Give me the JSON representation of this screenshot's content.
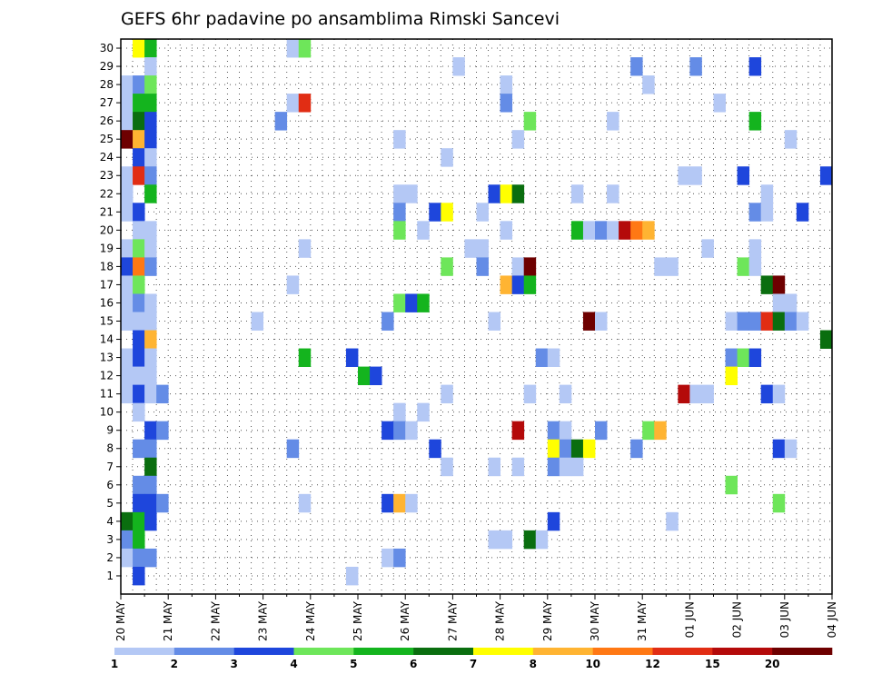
{
  "chart_data": {
    "type": "heatmap",
    "title": "GEFS 6hr padavine po ansamblima Rimski Sancevi",
    "xlabel": "",
    "ylabel": "",
    "x_tick_labels": [
      "20 MAY",
      "21 MAY",
      "22 MAY",
      "23 MAY",
      "24 MAY",
      "25 MAY",
      "26 MAY",
      "27 MAY",
      "28 MAY",
      "29 MAY",
      "30 MAY",
      "31 MAY",
      "01 JUN",
      "02 JUN",
      "03 JUN",
      "04 JUN"
    ],
    "y_tick_labels": [
      "1",
      "2",
      "3",
      "4",
      "5",
      "6",
      "7",
      "8",
      "9",
      "10",
      "11",
      "12",
      "13",
      "14",
      "15",
      "16",
      "17",
      "18",
      "19",
      "20",
      "21",
      "22",
      "23",
      "24",
      "25",
      "26",
      "27",
      "28",
      "29",
      "30"
    ],
    "x_range_steps": [
      0,
      60
    ],
    "y_range": [
      0,
      30
    ],
    "grid": true,
    "legend": {
      "placement": "bottom",
      "labels": [
        "1",
        "2",
        "3",
        "4",
        "5",
        "6",
        "7",
        "8",
        "10",
        "12",
        "15",
        "20"
      ],
      "colors": [
        "#b4c8f5",
        "#648ce6",
        "#1e46dc",
        "#6ee65a",
        "#14b41e",
        "#0a6e0f",
        "#ffff00",
        "#ffb432",
        "#ff7814",
        "#e12d14",
        "#b40a0a",
        "#6e0000"
      ]
    },
    "cells": [
      {
        "member": 30,
        "step": 1,
        "color": "#ffff00"
      },
      {
        "member": 30,
        "step": 2,
        "color": "#14b41e"
      },
      {
        "member": 30,
        "step": 14,
        "color": "#b4c8f5"
      },
      {
        "member": 30,
        "step": 15,
        "color": "#6ee65a"
      },
      {
        "member": 29,
        "step": 2,
        "color": "#b4c8f5"
      },
      {
        "member": 29,
        "step": 28,
        "color": "#b4c8f5"
      },
      {
        "member": 29,
        "step": 43,
        "color": "#648ce6"
      },
      {
        "member": 29,
        "step": 48,
        "color": "#648ce6"
      },
      {
        "member": 29,
        "step": 53,
        "color": "#1e46dc"
      },
      {
        "member": 28,
        "step": 0,
        "color": "#b4c8f5"
      },
      {
        "member": 28,
        "step": 1,
        "color": "#648ce6"
      },
      {
        "member": 28,
        "step": 2,
        "color": "#6ee65a"
      },
      {
        "member": 28,
        "step": 32,
        "color": "#b4c8f5"
      },
      {
        "member": 28,
        "step": 44,
        "color": "#b4c8f5"
      },
      {
        "member": 27,
        "step": 0,
        "color": "#b4c8f5"
      },
      {
        "member": 27,
        "step": 1,
        "color": "#14b41e"
      },
      {
        "member": 27,
        "step": 2,
        "color": "#14b41e"
      },
      {
        "member": 27,
        "step": 14,
        "color": "#b4c8f5"
      },
      {
        "member": 27,
        "step": 15,
        "color": "#e12d14"
      },
      {
        "member": 27,
        "step": 32,
        "color": "#648ce6"
      },
      {
        "member": 27,
        "step": 50,
        "color": "#b4c8f5"
      },
      {
        "member": 26,
        "step": 0,
        "color": "#b4c8f5"
      },
      {
        "member": 26,
        "step": 1,
        "color": "#0a6e0f"
      },
      {
        "member": 26,
        "step": 2,
        "color": "#1e46dc"
      },
      {
        "member": 26,
        "step": 13,
        "color": "#648ce6"
      },
      {
        "member": 26,
        "step": 34,
        "color": "#6ee65a"
      },
      {
        "member": 26,
        "step": 41,
        "color": "#b4c8f5"
      },
      {
        "member": 26,
        "step": 53,
        "color": "#14b41e"
      },
      {
        "member": 25,
        "step": 0,
        "color": "#6e0000"
      },
      {
        "member": 25,
        "step": 1,
        "color": "#ffb432"
      },
      {
        "member": 25,
        "step": 2,
        "color": "#1e46dc"
      },
      {
        "member": 25,
        "step": 23,
        "color": "#b4c8f5"
      },
      {
        "member": 25,
        "step": 33,
        "color": "#b4c8f5"
      },
      {
        "member": 25,
        "step": 56,
        "color": "#b4c8f5"
      },
      {
        "member": 24,
        "step": 1,
        "color": "#1e46dc"
      },
      {
        "member": 24,
        "step": 2,
        "color": "#b4c8f5"
      },
      {
        "member": 24,
        "step": 27,
        "color": "#b4c8f5"
      },
      {
        "member": 23,
        "step": 0,
        "color": "#b4c8f5"
      },
      {
        "member": 23,
        "step": 1,
        "color": "#e12d14"
      },
      {
        "member": 23,
        "step": 2,
        "color": "#648ce6"
      },
      {
        "member": 23,
        "step": 47,
        "color": "#b4c8f5"
      },
      {
        "member": 23,
        "step": 48,
        "color": "#b4c8f5"
      },
      {
        "member": 23,
        "step": 52,
        "color": "#1e46dc"
      },
      {
        "member": 23,
        "step": 59,
        "color": "#1e46dc"
      },
      {
        "member": 22,
        "step": 0,
        "color": "#b4c8f5"
      },
      {
        "member": 22,
        "step": 2,
        "color": "#14b41e"
      },
      {
        "member": 22,
        "step": 23,
        "color": "#b4c8f5"
      },
      {
        "member": 22,
        "step": 24,
        "color": "#b4c8f5"
      },
      {
        "member": 22,
        "step": 31,
        "color": "#1e46dc"
      },
      {
        "member": 22,
        "step": 32,
        "color": "#ffff00"
      },
      {
        "member": 22,
        "step": 33,
        "color": "#0a6e0f"
      },
      {
        "member": 22,
        "step": 38,
        "color": "#b4c8f5"
      },
      {
        "member": 22,
        "step": 41,
        "color": "#b4c8f5"
      },
      {
        "member": 22,
        "step": 54,
        "color": "#b4c8f5"
      },
      {
        "member": 21,
        "step": 0,
        "color": "#b4c8f5"
      },
      {
        "member": 21,
        "step": 1,
        "color": "#1e46dc"
      },
      {
        "member": 21,
        "step": 23,
        "color": "#648ce6"
      },
      {
        "member": 21,
        "step": 26,
        "color": "#1e46dc"
      },
      {
        "member": 21,
        "step": 27,
        "color": "#ffff00"
      },
      {
        "member": 21,
        "step": 30,
        "color": "#b4c8f5"
      },
      {
        "member": 21,
        "step": 53,
        "color": "#648ce6"
      },
      {
        "member": 21,
        "step": 54,
        "color": "#b4c8f5"
      },
      {
        "member": 21,
        "step": 57,
        "color": "#1e46dc"
      },
      {
        "member": 20,
        "step": 1,
        "color": "#b4c8f5"
      },
      {
        "member": 20,
        "step": 2,
        "color": "#b4c8f5"
      },
      {
        "member": 20,
        "step": 23,
        "color": "#6ee65a"
      },
      {
        "member": 20,
        "step": 25,
        "color": "#b4c8f5"
      },
      {
        "member": 20,
        "step": 32,
        "color": "#b4c8f5"
      },
      {
        "member": 20,
        "step": 38,
        "color": "#14b41e"
      },
      {
        "member": 20,
        "step": 39,
        "color": "#b4c8f5"
      },
      {
        "member": 20,
        "step": 40,
        "color": "#648ce6"
      },
      {
        "member": 20,
        "step": 41,
        "color": "#b4c8f5"
      },
      {
        "member": 20,
        "step": 42,
        "color": "#b40a0a"
      },
      {
        "member": 20,
        "step": 43,
        "color": "#ff7814"
      },
      {
        "member": 20,
        "step": 44,
        "color": "#ffb432"
      },
      {
        "member": 19,
        "step": 0,
        "color": "#b4c8f5"
      },
      {
        "member": 19,
        "step": 1,
        "color": "#6ee65a"
      },
      {
        "member": 19,
        "step": 2,
        "color": "#b4c8f5"
      },
      {
        "member": 19,
        "step": 15,
        "color": "#b4c8f5"
      },
      {
        "member": 19,
        "step": 29,
        "color": "#b4c8f5"
      },
      {
        "member": 19,
        "step": 30,
        "color": "#b4c8f5"
      },
      {
        "member": 19,
        "step": 49,
        "color": "#b4c8f5"
      },
      {
        "member": 19,
        "step": 53,
        "color": "#b4c8f5"
      },
      {
        "member": 18,
        "step": 0,
        "color": "#1e46dc"
      },
      {
        "member": 18,
        "step": 1,
        "color": "#ff7814"
      },
      {
        "member": 18,
        "step": 2,
        "color": "#648ce6"
      },
      {
        "member": 18,
        "step": 27,
        "color": "#6ee65a"
      },
      {
        "member": 18,
        "step": 30,
        "color": "#648ce6"
      },
      {
        "member": 18,
        "step": 33,
        "color": "#b4c8f5"
      },
      {
        "member": 18,
        "step": 34,
        "color": "#6e0000"
      },
      {
        "member": 18,
        "step": 45,
        "color": "#b4c8f5"
      },
      {
        "member": 18,
        "step": 46,
        "color": "#b4c8f5"
      },
      {
        "member": 18,
        "step": 52,
        "color": "#6ee65a"
      },
      {
        "member": 18,
        "step": 53,
        "color": "#b4c8f5"
      },
      {
        "member": 17,
        "step": 0,
        "color": "#b4c8f5"
      },
      {
        "member": 17,
        "step": 1,
        "color": "#6ee65a"
      },
      {
        "member": 17,
        "step": 14,
        "color": "#b4c8f5"
      },
      {
        "member": 17,
        "step": 32,
        "color": "#ffb432"
      },
      {
        "member": 17,
        "step": 33,
        "color": "#1e46dc"
      },
      {
        "member": 17,
        "step": 34,
        "color": "#14b41e"
      },
      {
        "member": 17,
        "step": 54,
        "color": "#0a6e0f"
      },
      {
        "member": 17,
        "step": 55,
        "color": "#6e0000"
      },
      {
        "member": 16,
        "step": 0,
        "color": "#b4c8f5"
      },
      {
        "member": 16,
        "step": 1,
        "color": "#648ce6"
      },
      {
        "member": 16,
        "step": 2,
        "color": "#b4c8f5"
      },
      {
        "member": 16,
        "step": 23,
        "color": "#6ee65a"
      },
      {
        "member": 16,
        "step": 24,
        "color": "#1e46dc"
      },
      {
        "member": 16,
        "step": 25,
        "color": "#14b41e"
      },
      {
        "member": 16,
        "step": 55,
        "color": "#b4c8f5"
      },
      {
        "member": 16,
        "step": 56,
        "color": "#b4c8f5"
      },
      {
        "member": 15,
        "step": 0,
        "color": "#b4c8f5"
      },
      {
        "member": 15,
        "step": 1,
        "color": "#b4c8f5"
      },
      {
        "member": 15,
        "step": 2,
        "color": "#b4c8f5"
      },
      {
        "member": 15,
        "step": 11,
        "color": "#b4c8f5"
      },
      {
        "member": 15,
        "step": 22,
        "color": "#648ce6"
      },
      {
        "member": 15,
        "step": 31,
        "color": "#b4c8f5"
      },
      {
        "member": 15,
        "step": 39,
        "color": "#6e0000"
      },
      {
        "member": 15,
        "step": 40,
        "color": "#b4c8f5"
      },
      {
        "member": 15,
        "step": 51,
        "color": "#b4c8f5"
      },
      {
        "member": 15,
        "step": 52,
        "color": "#648ce6"
      },
      {
        "member": 15,
        "step": 53,
        "color": "#648ce6"
      },
      {
        "member": 15,
        "step": 54,
        "color": "#e12d14"
      },
      {
        "member": 15,
        "step": 55,
        "color": "#0a6e0f"
      },
      {
        "member": 15,
        "step": 56,
        "color": "#648ce6"
      },
      {
        "member": 15,
        "step": 57,
        "color": "#b4c8f5"
      },
      {
        "member": 14,
        "step": 1,
        "color": "#1e46dc"
      },
      {
        "member": 14,
        "step": 2,
        "color": "#ffb432"
      },
      {
        "member": 14,
        "step": 59,
        "color": "#0a6e0f"
      },
      {
        "member": 13,
        "step": 0,
        "color": "#b4c8f5"
      },
      {
        "member": 13,
        "step": 1,
        "color": "#1e46dc"
      },
      {
        "member": 13,
        "step": 2,
        "color": "#b4c8f5"
      },
      {
        "member": 13,
        "step": 15,
        "color": "#14b41e"
      },
      {
        "member": 13,
        "step": 19,
        "color": "#1e46dc"
      },
      {
        "member": 13,
        "step": 35,
        "color": "#648ce6"
      },
      {
        "member": 13,
        "step": 36,
        "color": "#b4c8f5"
      },
      {
        "member": 13,
        "step": 51,
        "color": "#648ce6"
      },
      {
        "member": 13,
        "step": 52,
        "color": "#6ee65a"
      },
      {
        "member": 13,
        "step": 53,
        "color": "#1e46dc"
      },
      {
        "member": 12,
        "step": 0,
        "color": "#b4c8f5"
      },
      {
        "member": 12,
        "step": 1,
        "color": "#b4c8f5"
      },
      {
        "member": 12,
        "step": 2,
        "color": "#b4c8f5"
      },
      {
        "member": 12,
        "step": 20,
        "color": "#14b41e"
      },
      {
        "member": 12,
        "step": 21,
        "color": "#1e46dc"
      },
      {
        "member": 12,
        "step": 51,
        "color": "#ffff00"
      },
      {
        "member": 11,
        "step": 0,
        "color": "#b4c8f5"
      },
      {
        "member": 11,
        "step": 1,
        "color": "#1e46dc"
      },
      {
        "member": 11,
        "step": 2,
        "color": "#b4c8f5"
      },
      {
        "member": 11,
        "step": 3,
        "color": "#648ce6"
      },
      {
        "member": 11,
        "step": 27,
        "color": "#b4c8f5"
      },
      {
        "member": 11,
        "step": 34,
        "color": "#b4c8f5"
      },
      {
        "member": 11,
        "step": 37,
        "color": "#b4c8f5"
      },
      {
        "member": 11,
        "step": 47,
        "color": "#b40a0a"
      },
      {
        "member": 11,
        "step": 48,
        "color": "#b4c8f5"
      },
      {
        "member": 11,
        "step": 49,
        "color": "#b4c8f5"
      },
      {
        "member": 11,
        "step": 54,
        "color": "#1e46dc"
      },
      {
        "member": 11,
        "step": 55,
        "color": "#b4c8f5"
      },
      {
        "member": 10,
        "step": 1,
        "color": "#b4c8f5"
      },
      {
        "member": 10,
        "step": 23,
        "color": "#b4c8f5"
      },
      {
        "member": 10,
        "step": 25,
        "color": "#b4c8f5"
      },
      {
        "member": 9,
        "step": 2,
        "color": "#1e46dc"
      },
      {
        "member": 9,
        "step": 3,
        "color": "#648ce6"
      },
      {
        "member": 9,
        "step": 22,
        "color": "#1e46dc"
      },
      {
        "member": 9,
        "step": 23,
        "color": "#648ce6"
      },
      {
        "member": 9,
        "step": 24,
        "color": "#b4c8f5"
      },
      {
        "member": 9,
        "step": 33,
        "color": "#b40a0a"
      },
      {
        "member": 9,
        "step": 36,
        "color": "#648ce6"
      },
      {
        "member": 9,
        "step": 37,
        "color": "#b4c8f5"
      },
      {
        "member": 9,
        "step": 40,
        "color": "#648ce6"
      },
      {
        "member": 9,
        "step": 44,
        "color": "#6ee65a"
      },
      {
        "member": 9,
        "step": 45,
        "color": "#ffb432"
      },
      {
        "member": 8,
        "step": 1,
        "color": "#648ce6"
      },
      {
        "member": 8,
        "step": 2,
        "color": "#648ce6"
      },
      {
        "member": 8,
        "step": 14,
        "color": "#648ce6"
      },
      {
        "member": 8,
        "step": 26,
        "color": "#1e46dc"
      },
      {
        "member": 8,
        "step": 36,
        "color": "#ffff00"
      },
      {
        "member": 8,
        "step": 37,
        "color": "#648ce6"
      },
      {
        "member": 8,
        "step": 38,
        "color": "#0a6e0f"
      },
      {
        "member": 8,
        "step": 39,
        "color": "#ffff00"
      },
      {
        "member": 8,
        "step": 43,
        "color": "#648ce6"
      },
      {
        "member": 8,
        "step": 55,
        "color": "#1e46dc"
      },
      {
        "member": 8,
        "step": 56,
        "color": "#b4c8f5"
      },
      {
        "member": 7,
        "step": 2,
        "color": "#0a6e0f"
      },
      {
        "member": 7,
        "step": 27,
        "color": "#b4c8f5"
      },
      {
        "member": 7,
        "step": 31,
        "color": "#b4c8f5"
      },
      {
        "member": 7,
        "step": 33,
        "color": "#b4c8f5"
      },
      {
        "member": 7,
        "step": 36,
        "color": "#648ce6"
      },
      {
        "member": 7,
        "step": 37,
        "color": "#b4c8f5"
      },
      {
        "member": 7,
        "step": 38,
        "color": "#b4c8f5"
      },
      {
        "member": 6,
        "step": 1,
        "color": "#648ce6"
      },
      {
        "member": 6,
        "step": 2,
        "color": "#648ce6"
      },
      {
        "member": 6,
        "step": 51,
        "color": "#6ee65a"
      },
      {
        "member": 5,
        "step": 1,
        "color": "#1e46dc"
      },
      {
        "member": 5,
        "step": 2,
        "color": "#1e46dc"
      },
      {
        "member": 5,
        "step": 3,
        "color": "#648ce6"
      },
      {
        "member": 5,
        "step": 15,
        "color": "#b4c8f5"
      },
      {
        "member": 5,
        "step": 22,
        "color": "#1e46dc"
      },
      {
        "member": 5,
        "step": 23,
        "color": "#ffb432"
      },
      {
        "member": 5,
        "step": 24,
        "color": "#b4c8f5"
      },
      {
        "member": 5,
        "step": 55,
        "color": "#6ee65a"
      },
      {
        "member": 4,
        "step": 0,
        "color": "#0a6e0f"
      },
      {
        "member": 4,
        "step": 1,
        "color": "#14b41e"
      },
      {
        "member": 4,
        "step": 2,
        "color": "#1e46dc"
      },
      {
        "member": 4,
        "step": 36,
        "color": "#1e46dc"
      },
      {
        "member": 4,
        "step": 46,
        "color": "#b4c8f5"
      },
      {
        "member": 3,
        "step": 0,
        "color": "#648ce6"
      },
      {
        "member": 3,
        "step": 1,
        "color": "#14b41e"
      },
      {
        "member": 3,
        "step": 31,
        "color": "#b4c8f5"
      },
      {
        "member": 3,
        "step": 32,
        "color": "#b4c8f5"
      },
      {
        "member": 3,
        "step": 34,
        "color": "#0a6e0f"
      },
      {
        "member": 3,
        "step": 35,
        "color": "#b4c8f5"
      },
      {
        "member": 2,
        "step": 0,
        "color": "#b4c8f5"
      },
      {
        "member": 2,
        "step": 1,
        "color": "#648ce6"
      },
      {
        "member": 2,
        "step": 2,
        "color": "#648ce6"
      },
      {
        "member": 2,
        "step": 22,
        "color": "#b4c8f5"
      },
      {
        "member": 2,
        "step": 23,
        "color": "#648ce6"
      },
      {
        "member": 1,
        "step": 1,
        "color": "#1e46dc"
      },
      {
        "member": 1,
        "step": 19,
        "color": "#b4c8f5"
      }
    ]
  }
}
